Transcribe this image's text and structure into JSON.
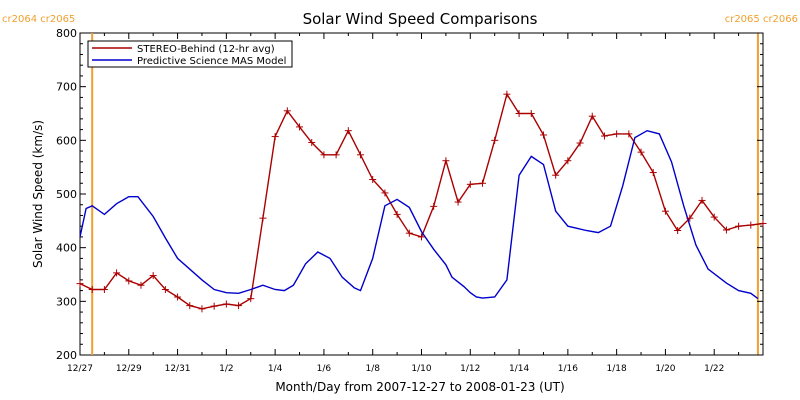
{
  "chart_data": {
    "type": "line",
    "title": "Solar Wind Speed Comparisons",
    "xlabel": "Month/Day from 2007-12-27 to 2008-01-23 (UT)",
    "ylabel": "Solar Wind Speed (km/s)",
    "xlim": [
      "2007-12-27",
      "2008-01-24"
    ],
    "ylim": [
      200,
      800
    ],
    "yticks": [
      200,
      300,
      400,
      500,
      600,
      700,
      800
    ],
    "xtick_labels": [
      "12/27",
      "12/29",
      "12/31",
      "1/2",
      "1/4",
      "1/6",
      "1/8",
      "1/10",
      "1/12",
      "1/14",
      "1/16",
      "1/18",
      "1/20",
      "1/22"
    ],
    "xtick_dates": [
      "2007-12-27",
      "2007-12-29",
      "2007-12-31",
      "2008-01-02",
      "2008-01-04",
      "2008-01-06",
      "2008-01-08",
      "2008-01-10",
      "2008-01-12",
      "2008-01-14",
      "2008-01-16",
      "2008-01-18",
      "2008-01-20",
      "2008-01-22"
    ],
    "carrington_markers": [
      {
        "date": "2007-12-27 12:00",
        "label": "cr2064 cr2065"
      },
      {
        "date": "2008-01-23 19:00",
        "label": "cr2065 cr2066"
      }
    ],
    "legend_position": "top-left",
    "series": [
      {
        "name": "STEREO-Behind (12-hr avg)",
        "color": "#aa0000",
        "marker": "plus",
        "x": [
          "2007-12-27 00:00",
          "2007-12-27 12:00",
          "2007-12-28 00:00",
          "2007-12-28 12:00",
          "2007-12-29 00:00",
          "2007-12-29 12:00",
          "2007-12-30 00:00",
          "2007-12-30 12:00",
          "2007-12-31 00:00",
          "2007-12-31 12:00",
          "2008-01-01 00:00",
          "2008-01-01 12:00",
          "2008-01-02 00:00",
          "2008-01-02 12:00",
          "2008-01-03 00:00",
          "2008-01-03 12:00",
          "2008-01-04 00:00",
          "2008-01-04 12:00",
          "2008-01-05 00:00",
          "2008-01-05 12:00",
          "2008-01-06 00:00",
          "2008-01-06 12:00",
          "2008-01-07 00:00",
          "2008-01-07 12:00",
          "2008-01-08 00:00",
          "2008-01-08 12:00",
          "2008-01-09 00:00",
          "2008-01-09 12:00",
          "2008-01-10 00:00",
          "2008-01-10 12:00",
          "2008-01-11 00:00",
          "2008-01-11 12:00",
          "2008-01-12 00:00",
          "2008-01-12 12:00",
          "2008-01-13 00:00",
          "2008-01-13 12:00",
          "2008-01-14 00:00",
          "2008-01-14 12:00",
          "2008-01-15 00:00",
          "2008-01-15 12:00",
          "2008-01-16 00:00",
          "2008-01-16 12:00",
          "2008-01-17 00:00",
          "2008-01-17 12:00",
          "2008-01-18 00:00",
          "2008-01-18 12:00",
          "2008-01-19 00:00",
          "2008-01-19 12:00",
          "2008-01-20 00:00",
          "2008-01-20 12:00",
          "2008-01-21 00:00",
          "2008-01-21 12:00",
          "2008-01-22 00:00",
          "2008-01-22 12:00",
          "2008-01-23 00:00",
          "2008-01-23 12:00",
          "2008-01-24 00:00"
        ],
        "y": [
          333,
          322,
          322,
          353,
          338,
          330,
          348,
          322,
          308,
          292,
          286,
          291,
          295,
          292,
          305,
          455,
          607,
          655,
          625,
          596,
          573,
          573,
          618,
          573,
          527,
          502,
          462,
          427,
          420,
          477,
          562,
          485,
          518,
          520,
          600,
          686,
          650,
          650,
          610,
          535,
          562,
          595,
          645,
          608,
          612,
          612,
          578,
          540,
          468,
          432,
          455,
          488,
          457,
          433,
          440,
          442,
          445
        ]
      },
      {
        "name": "Predictive Science MAS Model",
        "color": "#0000cc",
        "marker": "none",
        "x": [
          "2007-12-27 00:00",
          "2007-12-27 06:00",
          "2007-12-27 12:00",
          "2007-12-28 00:00",
          "2007-12-28 12:00",
          "2007-12-29 00:00",
          "2007-12-29 09:00",
          "2007-12-30 00:00",
          "2007-12-30 12:00",
          "2007-12-31 00:00",
          "2008-01-01 00:00",
          "2008-01-01 12:00",
          "2008-01-02 00:00",
          "2008-01-02 12:00",
          "2008-01-03 00:00",
          "2008-01-03 12:00",
          "2008-01-04 00:00",
          "2008-01-04 09:00",
          "2008-01-04 18:00",
          "2008-01-05 06:00",
          "2008-01-05 18:00",
          "2008-01-06 06:00",
          "2008-01-06 18:00",
          "2008-01-07 06:00",
          "2008-01-07 12:00",
          "2008-01-08 00:00",
          "2008-01-08 12:00",
          "2008-01-09 00:00",
          "2008-01-09 12:00",
          "2008-01-10 00:00",
          "2008-01-10 12:00",
          "2008-01-11 00:00",
          "2008-01-11 06:00",
          "2008-01-11 18:00",
          "2008-01-12 00:00",
          "2008-01-12 06:00",
          "2008-01-12 12:00",
          "2008-01-13 00:00",
          "2008-01-13 12:00",
          "2008-01-14 00:00",
          "2008-01-14 12:00",
          "2008-01-15 00:00",
          "2008-01-15 12:00",
          "2008-01-16 00:00",
          "2008-01-16 09:00",
          "2008-01-16 18:00",
          "2008-01-17 06:00",
          "2008-01-17 18:00",
          "2008-01-18 06:00",
          "2008-01-18 18:00",
          "2008-01-19 06:00",
          "2008-01-19 18:00",
          "2008-01-20 06:00",
          "2008-01-20 18:00",
          "2008-01-21 06:00",
          "2008-01-21 18:00",
          "2008-01-22 12:00",
          "2008-01-23 00:00",
          "2008-01-23 12:00",
          "2008-01-23 19:00"
        ],
        "y": [
          420,
          473,
          478,
          462,
          482,
          495,
          495,
          458,
          418,
          380,
          340,
          322,
          316,
          315,
          322,
          330,
          322,
          320,
          330,
          370,
          392,
          380,
          345,
          325,
          320,
          380,
          478,
          490,
          475,
          430,
          397,
          368,
          345,
          327,
          316,
          308,
          306,
          308,
          340,
          535,
          570,
          555,
          468,
          440,
          436,
          432,
          428,
          440,
          515,
          605,
          618,
          612,
          560,
          478,
          405,
          360,
          334,
          320,
          315,
          305
        ]
      }
    ]
  }
}
